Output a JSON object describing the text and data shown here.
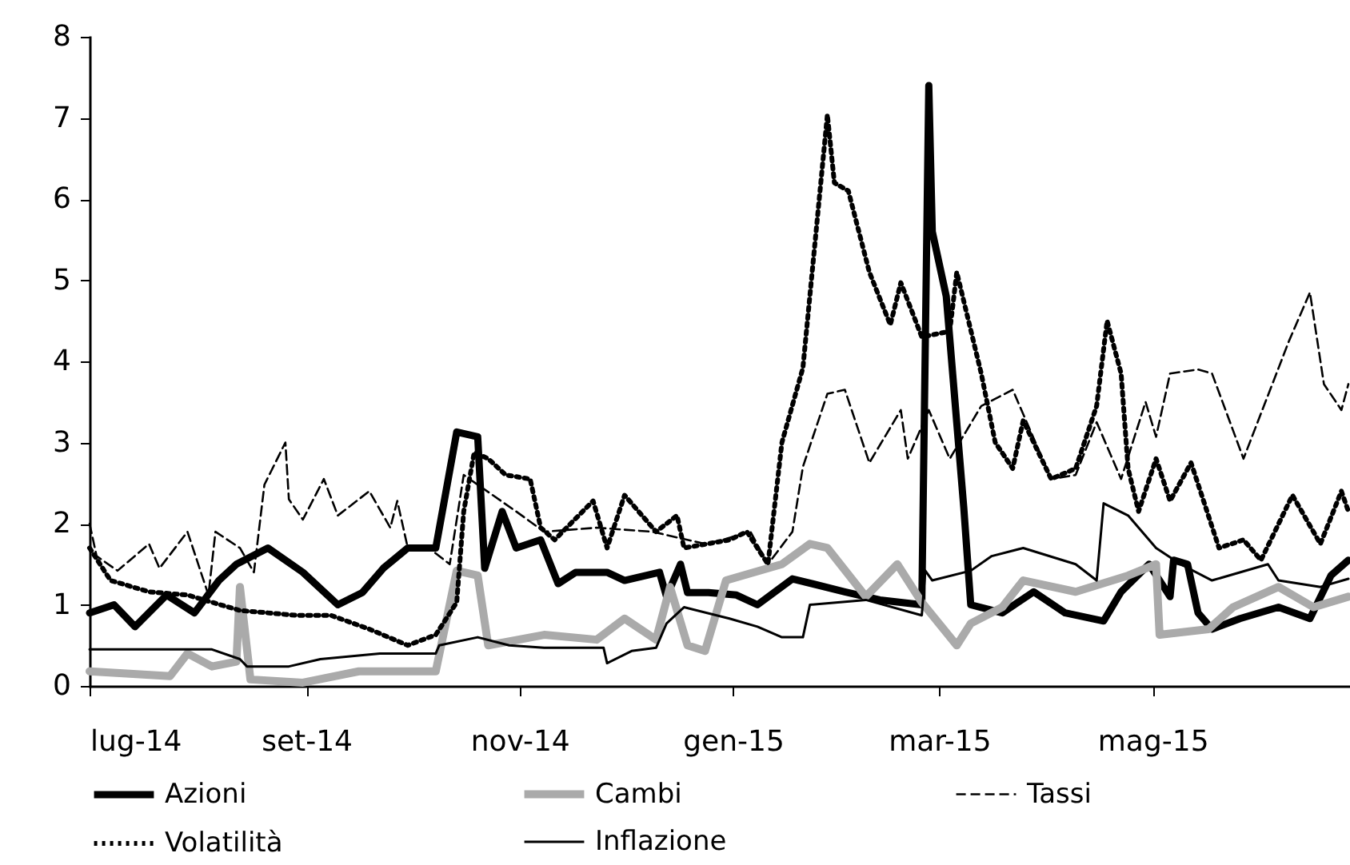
{
  "chart_data": {
    "type": "line",
    "xlim": [
      "2014-07-01",
      "2015-06-26"
    ],
    "ylim": [
      0,
      8
    ],
    "yticks": [
      0,
      1,
      2,
      3,
      4,
      5,
      6,
      7,
      8
    ],
    "xticks": [
      {
        "value": "2014-07-01",
        "label": "lug-14"
      },
      {
        "value": "2014-09-01",
        "label": "set-14"
      },
      {
        "value": "2014-11-01",
        "label": "nov-14"
      },
      {
        "value": "2015-01-01",
        "label": "gen-15"
      },
      {
        "value": "2015-03-01",
        "label": "mar-15"
      },
      {
        "value": "2015-05-01",
        "label": "mag-15"
      }
    ],
    "grid": false,
    "legend": "bottom",
    "series": [
      {
        "name": "Azioni",
        "color": "#000000",
        "line_style": "solid",
        "x": [
          "2014-07-01",
          "2014-07-08",
          "2014-07-14",
          "2014-07-23",
          "2014-07-31",
          "2014-08-07",
          "2014-08-12",
          "2014-08-21",
          "2014-08-31",
          "2014-09-10",
          "2014-09-17",
          "2014-09-23",
          "2014-09-30",
          "2014-10-08",
          "2014-10-14",
          "2014-10-20",
          "2014-10-22",
          "2014-10-27",
          "2014-10-31",
          "2014-11-07",
          "2014-11-12",
          "2014-11-17",
          "2014-11-26",
          "2014-12-01",
          "2014-12-11",
          "2014-12-13",
          "2014-12-17",
          "2014-12-19",
          "2014-12-25",
          "2015-01-02",
          "2015-01-08",
          "2015-01-18",
          "2015-02-02",
          "2015-02-12",
          "2015-02-24",
          "2015-02-26",
          "2015-02-27",
          "2015-03-03",
          "2015-03-08",
          "2015-03-10",
          "2015-03-19",
          "2015-03-28",
          "2015-04-06",
          "2015-04-17",
          "2015-04-22",
          "2015-04-30",
          "2015-05-06",
          "2015-05-07",
          "2015-05-11",
          "2015-05-14",
          "2015-05-18",
          "2015-05-26",
          "2015-06-06",
          "2015-06-15",
          "2015-06-21",
          "2015-06-26"
        ],
        "values": [
          0.9,
          1.0,
          0.73,
          1.12,
          0.9,
          1.3,
          1.5,
          1.7,
          1.4,
          1.0,
          1.15,
          1.45,
          1.7,
          1.7,
          3.13,
          3.07,
          1.45,
          2.15,
          1.7,
          1.8,
          1.26,
          1.4,
          1.4,
          1.3,
          1.4,
          1.1,
          1.5,
          1.15,
          1.15,
          1.12,
          1.0,
          1.32,
          1.16,
          1.06,
          1.0,
          7.4,
          5.6,
          4.8,
          2.2,
          1.0,
          0.9,
          1.16,
          0.9,
          0.8,
          1.16,
          1.5,
          1.1,
          1.55,
          1.5,
          0.9,
          0.7,
          0.83,
          0.97,
          0.83,
          1.36,
          1.55
        ]
      },
      {
        "name": "Cambi",
        "color": "#aaaaaa",
        "line_style": "solid",
        "x": [
          "2014-07-01",
          "2014-07-24",
          "2014-07-29",
          "2014-08-05",
          "2014-08-12",
          "2014-08-13",
          "2014-08-16",
          "2014-08-31",
          "2014-09-16",
          "2014-10-08",
          "2014-10-14",
          "2014-10-20",
          "2014-10-23",
          "2014-11-08",
          "2014-11-23",
          "2014-12-01",
          "2014-12-10",
          "2014-12-14",
          "2014-12-19",
          "2014-12-24",
          "2014-12-30",
          "2015-01-15",
          "2015-01-23",
          "2015-01-28",
          "2015-02-08",
          "2015-02-17",
          "2015-02-24",
          "2015-03-06",
          "2015-03-10",
          "2015-03-19",
          "2015-03-25",
          "2015-04-09",
          "2015-04-24",
          "2015-05-02",
          "2015-05-03",
          "2015-05-17",
          "2015-05-24",
          "2015-06-06",
          "2015-06-16",
          "2015-06-26"
        ],
        "values": [
          0.18,
          0.12,
          0.4,
          0.24,
          0.3,
          1.22,
          0.08,
          0.04,
          0.18,
          0.18,
          1.42,
          1.36,
          0.5,
          0.63,
          0.57,
          0.83,
          0.57,
          1.22,
          0.5,
          0.43,
          1.3,
          1.5,
          1.75,
          1.7,
          1.1,
          1.5,
          1.03,
          0.5,
          0.77,
          0.97,
          1.3,
          1.16,
          1.36,
          1.5,
          0.63,
          0.7,
          0.97,
          1.22,
          0.97,
          1.1
        ]
      },
      {
        "name": "Tassi",
        "color": "#000000",
        "line_style": "dashed",
        "x": [
          "2014-07-01",
          "2014-07-03",
          "2014-07-09",
          "2014-07-18",
          "2014-07-21",
          "2014-07-29",
          "2014-08-04",
          "2014-08-06",
          "2014-08-13",
          "2014-08-17",
          "2014-08-20",
          "2014-08-26",
          "2014-08-27",
          "2014-08-31",
          "2014-09-06",
          "2014-09-10",
          "2014-09-19",
          "2014-09-25",
          "2014-09-27",
          "2014-09-30",
          "2014-10-06",
          "2014-10-12",
          "2014-10-16",
          "2014-10-31",
          "2014-11-08",
          "2014-11-23",
          "2014-12-09",
          "2014-12-24",
          "2014-12-29",
          "2015-01-06",
          "2015-01-11",
          "2015-01-18",
          "2015-01-21",
          "2015-01-28",
          "2015-02-02",
          "2015-02-09",
          "2015-02-18",
          "2015-02-20",
          "2015-02-26",
          "2015-03-04",
          "2015-03-13",
          "2015-03-22",
          "2015-04-02",
          "2015-04-09",
          "2015-04-15",
          "2015-04-22",
          "2015-04-29",
          "2015-05-02",
          "2015-05-06",
          "2015-05-14",
          "2015-05-18",
          "2015-05-27",
          "2015-06-09",
          "2015-06-15",
          "2015-06-19",
          "2015-06-24",
          "2015-06-26"
        ],
        "values": [
          2.0,
          1.6,
          1.42,
          1.75,
          1.45,
          1.9,
          1.12,
          1.9,
          1.7,
          1.4,
          2.48,
          3.0,
          2.3,
          2.05,
          2.55,
          2.1,
          2.4,
          1.95,
          2.28,
          1.7,
          1.7,
          1.5,
          2.6,
          2.15,
          1.9,
          1.95,
          1.9,
          1.75,
          1.8,
          1.9,
          1.5,
          1.9,
          2.7,
          3.6,
          3.65,
          2.75,
          3.4,
          2.8,
          3.4,
          2.8,
          3.45,
          3.65,
          2.55,
          2.6,
          3.25,
          2.55,
          3.5,
          3.07,
          3.85,
          3.9,
          3.85,
          2.8,
          4.25,
          4.85,
          3.72,
          3.4,
          3.72
        ]
      },
      {
        "name": "Volatilità",
        "color": "#000000",
        "line_style": "dotted",
        "x": [
          "2014-07-01",
          "2014-07-07",
          "2014-07-18",
          "2014-07-29",
          "2014-08-13",
          "2014-08-29",
          "2014-09-08",
          "2014-09-19",
          "2014-09-30",
          "2014-10-08",
          "2014-10-14",
          "2014-10-16",
          "2014-10-19",
          "2014-10-23",
          "2014-10-28",
          "2014-11-04",
          "2014-11-07",
          "2014-11-11",
          "2014-11-22",
          "2014-11-26",
          "2014-12-01",
          "2014-12-10",
          "2014-12-16",
          "2014-12-18",
          "2014-12-31",
          "2015-01-05",
          "2015-01-11",
          "2015-01-15",
          "2015-01-21",
          "2015-01-28",
          "2015-01-30",
          "2015-02-03",
          "2015-02-09",
          "2015-02-15",
          "2015-02-18",
          "2015-02-24",
          "2015-03-04",
          "2015-03-06",
          "2015-03-13",
          "2015-03-17",
          "2015-03-22",
          "2015-03-25",
          "2015-04-02",
          "2015-04-09",
          "2015-04-15",
          "2015-04-18",
          "2015-04-22",
          "2015-04-24",
          "2015-04-27",
          "2015-05-02",
          "2015-05-06",
          "2015-05-12",
          "2015-05-20",
          "2015-05-27",
          "2015-06-01",
          "2015-06-10",
          "2015-06-18",
          "2015-06-24",
          "2015-06-26"
        ],
        "values": [
          1.7,
          1.3,
          1.16,
          1.12,
          0.93,
          0.87,
          0.87,
          0.7,
          0.5,
          0.63,
          1.03,
          2.15,
          2.88,
          2.8,
          2.6,
          2.55,
          1.95,
          1.8,
          2.28,
          1.7,
          2.35,
          1.9,
          2.1,
          1.7,
          1.8,
          1.9,
          1.5,
          3.0,
          3.92,
          7.04,
          6.2,
          6.1,
          5.1,
          4.45,
          4.97,
          4.3,
          4.37,
          5.1,
          3.85,
          3.0,
          2.68,
          3.27,
          2.55,
          2.68,
          3.45,
          4.5,
          3.85,
          2.68,
          2.15,
          2.8,
          2.28,
          2.75,
          1.7,
          1.8,
          1.55,
          2.35,
          1.75,
          2.4,
          2.15
        ]
      },
      {
        "name": "Inflazione",
        "color": "#000000",
        "line_style": "solid",
        "x": [
          "2014-07-01",
          "2014-08-05",
          "2014-08-13",
          "2014-08-15",
          "2014-08-27",
          "2014-09-05",
          "2014-09-22",
          "2014-10-08",
          "2014-10-09",
          "2014-10-20",
          "2014-10-29",
          "2014-11-08",
          "2014-11-25",
          "2014-11-26",
          "2014-12-03",
          "2014-12-10",
          "2014-12-13",
          "2014-12-18",
          "2014-12-31",
          "2015-01-08",
          "2015-01-15",
          "2015-01-21",
          "2015-01-23",
          "2015-02-08",
          "2015-02-24",
          "2015-02-25",
          "2015-02-27",
          "2015-03-10",
          "2015-03-16",
          "2015-03-25",
          "2015-04-09",
          "2015-04-15",
          "2015-04-17",
          "2015-04-24",
          "2015-05-02",
          "2015-05-09",
          "2015-05-18",
          "2015-06-03",
          "2015-06-06",
          "2015-06-18",
          "2015-06-26"
        ],
        "values": [
          0.45,
          0.45,
          0.33,
          0.24,
          0.24,
          0.33,
          0.4,
          0.4,
          0.5,
          0.6,
          0.5,
          0.47,
          0.47,
          0.28,
          0.43,
          0.47,
          0.77,
          0.97,
          0.83,
          0.73,
          0.6,
          0.6,
          1.0,
          1.06,
          0.87,
          1.42,
          1.3,
          1.42,
          1.6,
          1.7,
          1.5,
          1.3,
          2.25,
          2.1,
          1.7,
          1.5,
          1.3,
          1.5,
          1.3,
          1.22,
          1.32
        ]
      }
    ]
  }
}
